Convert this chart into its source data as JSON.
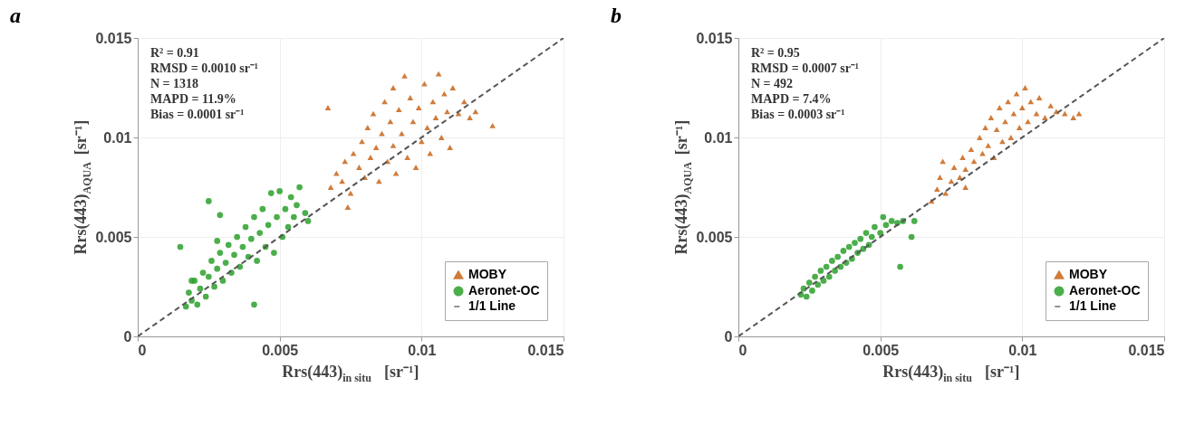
{
  "chart_data": [
    {
      "type": "scatter",
      "title": "a",
      "xlabel": "Rrs(443)$_{in situ}$ [sr⁻¹]",
      "ylabel": "Rrs(443)$_{AQUA}$ [sr⁻¹]",
      "xlim": [
        0,
        0.015
      ],
      "ylim": [
        0,
        0.015
      ],
      "xticks": [
        0,
        0.005,
        0.01,
        0.015
      ],
      "yticks": [
        0,
        0.005,
        0.01,
        0.015
      ],
      "grid": true,
      "legend": "bottom right",
      "annotations": [
        "R² = 0.91",
        "RMSD = 0.0010 sr⁻¹",
        "N = 1318",
        "MAPD = 11.9%",
        "Bias = 0.0001 sr⁻¹"
      ],
      "series": [
        {
          "name": "MOBY",
          "color": "#c8651a",
          "marker": "triangle",
          "x": [
            0.0068,
            0.007,
            0.0072,
            0.0073,
            0.0075,
            0.0076,
            0.0078,
            0.0079,
            0.008,
            0.0081,
            0.0082,
            0.0083,
            0.0084,
            0.0085,
            0.0086,
            0.0087,
            0.0088,
            0.0089,
            0.009,
            0.009,
            0.0091,
            0.0092,
            0.0093,
            0.0094,
            0.0095,
            0.0096,
            0.0097,
            0.0098,
            0.0099,
            0.01,
            0.0101,
            0.0102,
            0.0103,
            0.0104,
            0.0105,
            0.0106,
            0.0107,
            0.0108,
            0.0109,
            0.011,
            0.0111,
            0.0113,
            0.0115,
            0.0117,
            0.0119,
            0.0067,
            0.0125,
            0.0074
          ],
          "values": [
            0.0075,
            0.0082,
            0.0078,
            0.0088,
            0.0072,
            0.0092,
            0.0085,
            0.0098,
            0.008,
            0.0105,
            0.009,
            0.0112,
            0.0095,
            0.0078,
            0.0102,
            0.0118,
            0.0088,
            0.0108,
            0.0125,
            0.0096,
            0.0082,
            0.0114,
            0.0102,
            0.0131,
            0.009,
            0.012,
            0.0108,
            0.0085,
            0.0115,
            0.0098,
            0.0127,
            0.0105,
            0.0092,
            0.0118,
            0.011,
            0.0132,
            0.01,
            0.0122,
            0.0113,
            0.0095,
            0.0125,
            0.0112,
            0.0118,
            0.011,
            0.0113,
            0.0115,
            0.0106,
            0.0065
          ]
        },
        {
          "name": "Aeronet-OC",
          "color": "#2ca02c",
          "marker": "circle",
          "x": [
            0.0017,
            0.0018,
            0.0019,
            0.002,
            0.0021,
            0.0022,
            0.0023,
            0.0024,
            0.0025,
            0.0026,
            0.0027,
            0.0028,
            0.0029,
            0.003,
            0.0031,
            0.0032,
            0.0033,
            0.0034,
            0.0035,
            0.0036,
            0.0037,
            0.0038,
            0.0039,
            0.004,
            0.0041,
            0.0042,
            0.0043,
            0.0044,
            0.0045,
            0.0046,
            0.0047,
            0.0048,
            0.0049,
            0.005,
            0.0051,
            0.0052,
            0.0053,
            0.0054,
            0.0055,
            0.0056,
            0.0057,
            0.0059,
            0.006,
            0.0025,
            0.0015,
            0.0028,
            0.0041,
            0.0029,
            0.0019
          ],
          "values": [
            0.0015,
            0.0022,
            0.0018,
            0.0028,
            0.0016,
            0.0024,
            0.0032,
            0.002,
            0.003,
            0.0038,
            0.0025,
            0.0034,
            0.0042,
            0.0028,
            0.0037,
            0.0046,
            0.0032,
            0.0041,
            0.005,
            0.0035,
            0.0045,
            0.0055,
            0.004,
            0.0049,
            0.006,
            0.0038,
            0.0052,
            0.0064,
            0.0045,
            0.0056,
            0.0072,
            0.0042,
            0.006,
            0.0073,
            0.005,
            0.0064,
            0.0055,
            0.007,
            0.006,
            0.0066,
            0.0075,
            0.0062,
            0.0058,
            0.0068,
            0.0045,
            0.0048,
            0.0016,
            0.0061,
            0.0028
          ]
        },
        {
          "name": "1/1 Line",
          "type": "line",
          "color": "#555555",
          "line_style": "dashed",
          "marker": "none",
          "x": [
            0,
            0.015
          ],
          "values": [
            0,
            0.015
          ]
        }
      ]
    },
    {
      "type": "scatter",
      "title": "b",
      "xlabel": "Rrs(443)$_{in situ}$ [sr⁻¹]",
      "ylabel": "Rrs(443)$_{AQUA}$ [sr⁻¹]",
      "xlim": [
        0,
        0.015
      ],
      "ylim": [
        0,
        0.015
      ],
      "xticks": [
        0,
        0.005,
        0.01,
        0.015
      ],
      "yticks": [
        0,
        0.005,
        0.01,
        0.015
      ],
      "grid": true,
      "legend": "bottom right",
      "annotations": [
        "R² = 0.95",
        "RMSD = 0.0007 sr⁻¹",
        "N = 492",
        "MAPD = 7.4%",
        "Bias = 0.0003 sr⁻¹"
      ],
      "series": [
        {
          "name": "MOBY",
          "color": "#c8651a",
          "marker": "triangle",
          "x": [
            0.0068,
            0.007,
            0.0071,
            0.0073,
            0.0075,
            0.0076,
            0.0078,
            0.0079,
            0.008,
            0.0082,
            0.0083,
            0.0085,
            0.0086,
            0.0087,
            0.0088,
            0.0089,
            0.009,
            0.0091,
            0.0092,
            0.0093,
            0.0094,
            0.0095,
            0.0096,
            0.0097,
            0.0098,
            0.0099,
            0.01,
            0.0101,
            0.0102,
            0.0103,
            0.0105,
            0.0106,
            0.0108,
            0.011,
            0.0112,
            0.0115,
            0.0118,
            0.012,
            0.0072,
            0.008
          ],
          "values": [
            0.0068,
            0.0074,
            0.008,
            0.0072,
            0.0078,
            0.0085,
            0.008,
            0.009,
            0.0084,
            0.0094,
            0.0088,
            0.01,
            0.0092,
            0.0105,
            0.0096,
            0.011,
            0.009,
            0.0104,
            0.0115,
            0.0098,
            0.0108,
            0.0118,
            0.01,
            0.0112,
            0.0122,
            0.0105,
            0.0115,
            0.0125,
            0.0108,
            0.0118,
            0.0112,
            0.012,
            0.011,
            0.0116,
            0.0113,
            0.0112,
            0.011,
            0.0112,
            0.0088,
            0.0075
          ]
        },
        {
          "name": "Aeronet-OC",
          "color": "#2ca02c",
          "marker": "circle",
          "x": [
            0.0022,
            0.0023,
            0.0024,
            0.0025,
            0.0026,
            0.0027,
            0.0028,
            0.0029,
            0.003,
            0.0031,
            0.0032,
            0.0033,
            0.0034,
            0.0035,
            0.0036,
            0.0037,
            0.0038,
            0.0039,
            0.004,
            0.0041,
            0.0042,
            0.0043,
            0.0044,
            0.0045,
            0.0046,
            0.0047,
            0.0048,
            0.005,
            0.0052,
            0.0054,
            0.0056,
            0.0058,
            0.0057,
            0.0051,
            0.0062,
            0.0061
          ],
          "values": [
            0.0021,
            0.0024,
            0.002,
            0.0027,
            0.0023,
            0.003,
            0.0026,
            0.0033,
            0.0028,
            0.0035,
            0.003,
            0.0038,
            0.0033,
            0.004,
            0.0035,
            0.0043,
            0.0037,
            0.0045,
            0.0039,
            0.0047,
            0.0042,
            0.0049,
            0.0044,
            0.0052,
            0.0046,
            0.005,
            0.0055,
            0.0052,
            0.0056,
            0.0058,
            0.0057,
            0.0058,
            0.0035,
            0.006,
            0.0058,
            0.005
          ]
        },
        {
          "name": "1/1 Line",
          "type": "line",
          "color": "#555555",
          "line_style": "dashed",
          "marker": "none",
          "x": [
            0,
            0.015
          ],
          "values": [
            0,
            0.015
          ]
        }
      ]
    }
  ]
}
